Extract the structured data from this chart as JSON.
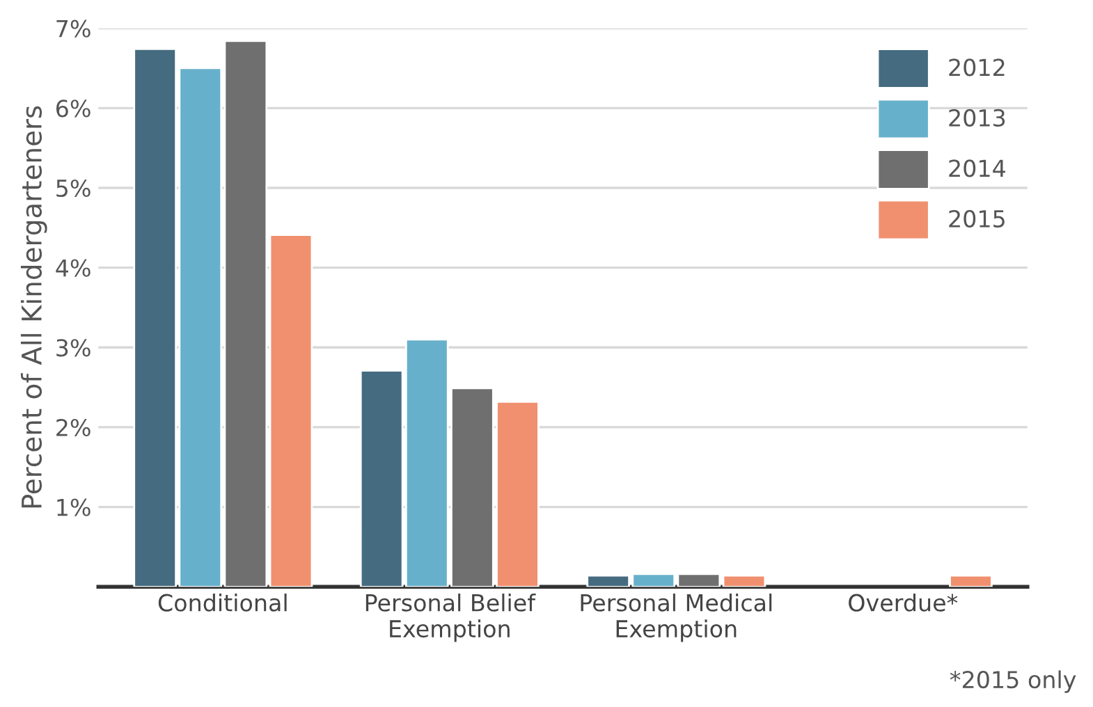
{
  "chart_data": {
    "type": "bar",
    "ylabel": "Percent of All Kindergarteners",
    "categories": [
      "Conditional",
      "Personal Belief\nExemption",
      "Personal Medical\nExemption",
      "Overdue*"
    ],
    "series": [
      {
        "name": "2012",
        "color": "#456b80",
        "values": [
          6.74,
          2.71,
          0.14,
          null
        ]
      },
      {
        "name": "2013",
        "color": "#67b0cb",
        "values": [
          6.5,
          3.1,
          0.16,
          null
        ]
      },
      {
        "name": "2014",
        "color": "#6f6f6f",
        "values": [
          6.84,
          2.49,
          0.16,
          null
        ]
      },
      {
        "name": "2015",
        "color": "#f0906f",
        "values": [
          4.41,
          2.32,
          0.14,
          0.14
        ]
      }
    ],
    "ylim": [
      0,
      7
    ],
    "yticks": [
      {
        "value": 1,
        "label": "1%"
      },
      {
        "value": 2,
        "label": "2%"
      },
      {
        "value": 3,
        "label": "3%"
      },
      {
        "value": 4,
        "label": "4%"
      },
      {
        "value": 5,
        "label": "5%"
      },
      {
        "value": 6,
        "label": "6%"
      },
      {
        "value": 7,
        "label": "7%"
      }
    ],
    "grid": "y",
    "legend": "top right",
    "annotations": [
      "*2015 only"
    ]
  }
}
